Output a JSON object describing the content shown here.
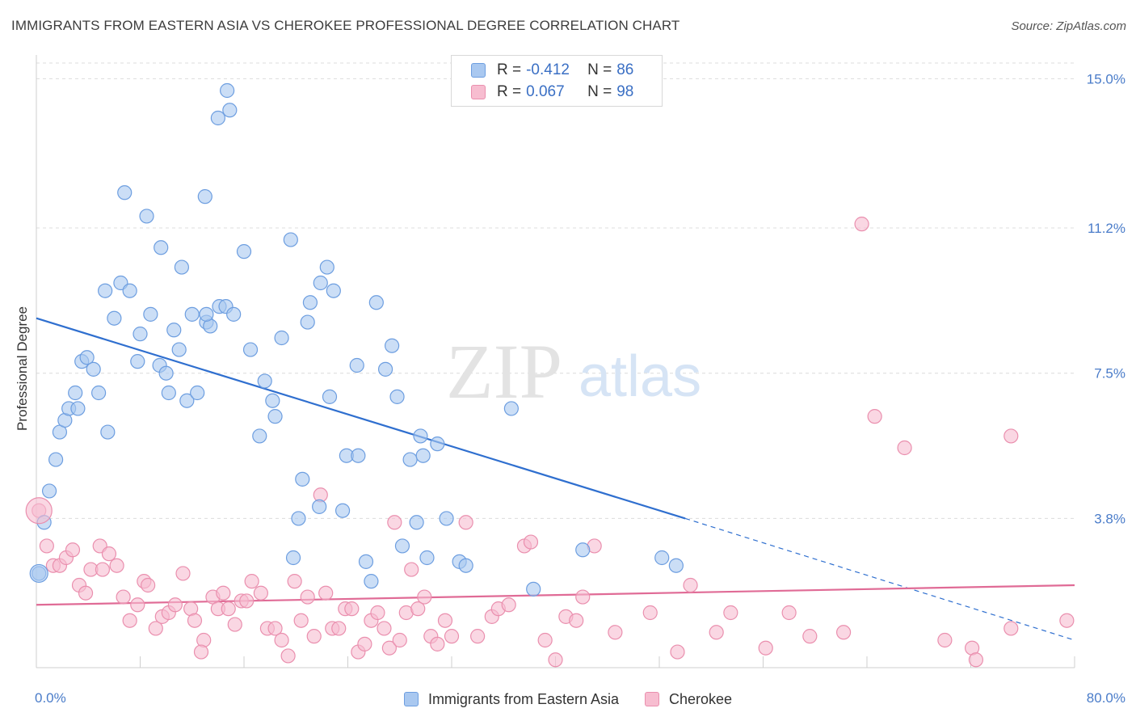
{
  "header": {
    "title": "IMMIGRANTS FROM EASTERN ASIA VS CHEROKEE PROFESSIONAL DEGREE CORRELATION CHART",
    "source": "Source: ZipAtlas.com"
  },
  "watermark": {
    "zip": "ZIP",
    "atlas": "atlas"
  },
  "legend": {
    "rows": [
      {
        "r_label": "R =",
        "r_value": "-0.412",
        "n_label": "N =",
        "n_value": "86"
      },
      {
        "r_label": "R =",
        "r_value": "0.067",
        "n_label": "N =",
        "n_value": "98"
      }
    ]
  },
  "bottom_legend": {
    "items": [
      "Immigrants from Eastern Asia",
      "Cherokee"
    ]
  },
  "chart_data": {
    "type": "scatter",
    "title": "IMMIGRANTS FROM EASTERN ASIA VS CHEROKEE PROFESSIONAL DEGREE CORRELATION CHART",
    "ylabel": "Professional Degree",
    "xlabel": "",
    "xlim": [
      0,
      80
    ],
    "ylim": [
      0,
      15.4
    ],
    "x_tick_labels": [
      "0.0%",
      "80.0%"
    ],
    "y_ticks": [
      3.8,
      7.5,
      11.2,
      15.0
    ],
    "y_tick_labels": [
      "3.8%",
      "7.5%",
      "11.2%",
      "15.0%"
    ],
    "grid": true,
    "colors": {
      "blue_fill": "#a9c8f0",
      "blue_stroke": "#6d9ee0",
      "blue_line": "#2f6fcf",
      "pink_fill": "#f7bdd0",
      "pink_stroke": "#ea8fae",
      "pink_line": "#e06b96"
    },
    "series": [
      {
        "name": "Immigrants from Eastern Asia",
        "color": "#a9c8f0",
        "trend": {
          "x0": 0,
          "y0": 8.9,
          "x1": 50,
          "y1": 3.8,
          "dash_to_x": 80,
          "dash_to_y": 0.7
        },
        "points": [
          [
            0.2,
            2.4
          ],
          [
            0.6,
            3.7
          ],
          [
            1.0,
            4.5
          ],
          [
            1.5,
            5.3
          ],
          [
            1.8,
            6.0
          ],
          [
            2.2,
            6.3
          ],
          [
            2.5,
            6.6
          ],
          [
            3.0,
            7.0
          ],
          [
            3.2,
            6.6
          ],
          [
            3.5,
            7.8
          ],
          [
            3.9,
            7.9
          ],
          [
            4.4,
            7.6
          ],
          [
            4.8,
            7.0
          ],
          [
            5.5,
            6.0
          ],
          [
            6.0,
            8.9
          ],
          [
            6.5,
            9.8
          ],
          [
            5.3,
            9.6
          ],
          [
            7.2,
            9.6
          ],
          [
            7.8,
            7.8
          ],
          [
            8.0,
            8.5
          ],
          [
            6.8,
            12.1
          ],
          [
            8.5,
            11.5
          ],
          [
            8.8,
            9.0
          ],
          [
            9.5,
            7.7
          ],
          [
            10.0,
            7.5
          ],
          [
            10.2,
            7.0
          ],
          [
            9.6,
            10.7
          ],
          [
            10.6,
            8.6
          ],
          [
            11.0,
            8.1
          ],
          [
            11.2,
            10.2
          ],
          [
            11.6,
            6.8
          ],
          [
            12.4,
            7.0
          ],
          [
            12.0,
            9.0
          ],
          [
            13.1,
            8.8
          ],
          [
            13.4,
            8.7
          ],
          [
            13.1,
            9.0
          ],
          [
            14.1,
            9.2
          ],
          [
            14.6,
            9.2
          ],
          [
            15.2,
            9.0
          ],
          [
            13.0,
            12.0
          ],
          [
            14.9,
            14.2
          ],
          [
            14.7,
            14.7
          ],
          [
            16.0,
            10.6
          ],
          [
            16.5,
            8.1
          ],
          [
            17.2,
            5.9
          ],
          [
            17.6,
            7.3
          ],
          [
            18.2,
            6.8
          ],
          [
            18.4,
            6.4
          ],
          [
            18.9,
            8.4
          ],
          [
            19.6,
            10.9
          ],
          [
            20.2,
            3.8
          ],
          [
            20.5,
            4.8
          ],
          [
            19.8,
            2.8
          ],
          [
            21.1,
            9.3
          ],
          [
            20.9,
            8.8
          ],
          [
            21.9,
            9.8
          ],
          [
            22.4,
            10.2
          ],
          [
            22.9,
            9.6
          ],
          [
            21.8,
            4.1
          ],
          [
            22.6,
            6.9
          ],
          [
            23.6,
            4.0
          ],
          [
            23.9,
            5.4
          ],
          [
            24.8,
            5.4
          ],
          [
            24.7,
            7.7
          ],
          [
            25.4,
            2.7
          ],
          [
            25.8,
            2.2
          ],
          [
            26.2,
            9.3
          ],
          [
            26.9,
            7.6
          ],
          [
            27.4,
            8.2
          ],
          [
            27.8,
            6.9
          ],
          [
            28.2,
            3.1
          ],
          [
            28.8,
            5.3
          ],
          [
            29.3,
            3.7
          ],
          [
            29.6,
            5.9
          ],
          [
            29.8,
            5.4
          ],
          [
            30.1,
            2.8
          ],
          [
            30.9,
            5.7
          ],
          [
            31.6,
            3.8
          ],
          [
            32.6,
            2.7
          ],
          [
            33.1,
            2.6
          ],
          [
            36.6,
            6.6
          ],
          [
            38.3,
            2.0
          ],
          [
            42.1,
            3.0
          ],
          [
            48.2,
            2.8
          ],
          [
            49.3,
            2.6
          ],
          [
            14.0,
            14.0
          ]
        ]
      },
      {
        "name": "Cherokee",
        "color": "#f7bdd0",
        "trend": {
          "x0": 0,
          "y0": 1.6,
          "x1": 80,
          "y1": 2.1
        },
        "points": [
          [
            0.2,
            4.0
          ],
          [
            0.8,
            3.1
          ],
          [
            1.3,
            2.6
          ],
          [
            1.8,
            2.6
          ],
          [
            2.3,
            2.8
          ],
          [
            2.8,
            3.0
          ],
          [
            3.3,
            2.1
          ],
          [
            3.8,
            1.9
          ],
          [
            4.2,
            2.5
          ],
          [
            4.9,
            3.1
          ],
          [
            5.1,
            2.5
          ],
          [
            5.6,
            2.9
          ],
          [
            6.2,
            2.6
          ],
          [
            6.7,
            1.8
          ],
          [
            7.2,
            1.2
          ],
          [
            7.8,
            1.6
          ],
          [
            8.3,
            2.2
          ],
          [
            8.6,
            2.1
          ],
          [
            9.2,
            1.0
          ],
          [
            9.7,
            1.3
          ],
          [
            10.2,
            1.4
          ],
          [
            10.7,
            1.6
          ],
          [
            11.3,
            2.4
          ],
          [
            11.9,
            1.5
          ],
          [
            12.2,
            1.2
          ],
          [
            12.9,
            0.7
          ],
          [
            12.7,
            0.4
          ],
          [
            13.6,
            1.8
          ],
          [
            14.0,
            1.5
          ],
          [
            14.4,
            1.9
          ],
          [
            14.8,
            1.5
          ],
          [
            15.3,
            1.1
          ],
          [
            15.8,
            1.7
          ],
          [
            16.2,
            1.7
          ],
          [
            16.6,
            2.2
          ],
          [
            17.3,
            1.9
          ],
          [
            17.8,
            1.0
          ],
          [
            18.4,
            1.0
          ],
          [
            18.9,
            0.7
          ],
          [
            19.4,
            0.3
          ],
          [
            19.9,
            2.2
          ],
          [
            20.4,
            1.2
          ],
          [
            20.9,
            1.8
          ],
          [
            21.4,
            0.8
          ],
          [
            21.9,
            4.4
          ],
          [
            22.3,
            1.9
          ],
          [
            22.8,
            1.0
          ],
          [
            23.3,
            1.0
          ],
          [
            23.8,
            1.5
          ],
          [
            24.3,
            1.5
          ],
          [
            24.8,
            0.4
          ],
          [
            25.3,
            0.6
          ],
          [
            25.8,
            1.2
          ],
          [
            26.3,
            1.4
          ],
          [
            26.8,
            1.0
          ],
          [
            27.2,
            0.5
          ],
          [
            27.6,
            3.7
          ],
          [
            28.0,
            0.7
          ],
          [
            28.5,
            1.4
          ],
          [
            28.9,
            2.5
          ],
          [
            29.4,
            1.5
          ],
          [
            29.9,
            1.8
          ],
          [
            30.4,
            0.8
          ],
          [
            30.9,
            0.6
          ],
          [
            31.5,
            1.2
          ],
          [
            32.0,
            0.8
          ],
          [
            33.1,
            3.7
          ],
          [
            34.0,
            0.8
          ],
          [
            35.1,
            1.3
          ],
          [
            35.6,
            1.5
          ],
          [
            36.4,
            1.6
          ],
          [
            37.6,
            3.1
          ],
          [
            38.1,
            3.2
          ],
          [
            39.2,
            0.7
          ],
          [
            40.0,
            0.2
          ],
          [
            40.8,
            1.3
          ],
          [
            41.6,
            1.2
          ],
          [
            42.1,
            1.8
          ],
          [
            43.0,
            3.1
          ],
          [
            44.6,
            0.9
          ],
          [
            47.3,
            1.4
          ],
          [
            49.4,
            0.4
          ],
          [
            50.4,
            2.1
          ],
          [
            52.4,
            0.9
          ],
          [
            53.5,
            1.4
          ],
          [
            56.2,
            0.5
          ],
          [
            58.0,
            1.4
          ],
          [
            59.6,
            0.8
          ],
          [
            62.2,
            0.9
          ],
          [
            63.6,
            11.3
          ],
          [
            64.6,
            6.4
          ],
          [
            66.9,
            5.6
          ],
          [
            70.0,
            0.7
          ],
          [
            72.1,
            0.5
          ],
          [
            72.4,
            0.2
          ],
          [
            75.1,
            5.9
          ],
          [
            75.1,
            1.0
          ],
          [
            79.4,
            1.2
          ]
        ]
      }
    ]
  }
}
